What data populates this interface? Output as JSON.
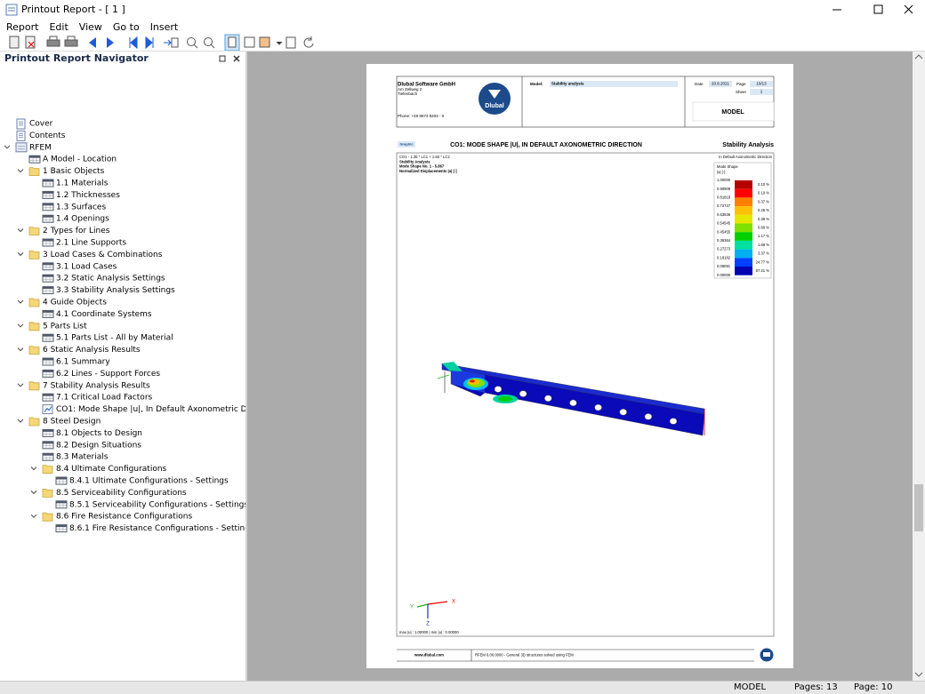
{
  "window": {
    "title": "Printout Report - [ 1 ]"
  },
  "menu": [
    "Report",
    "Edit",
    "View",
    "Go to",
    "Insert"
  ],
  "navigator": {
    "title": "Printout Report Navigator",
    "tree": [
      {
        "label": "Cover"
      },
      {
        "label": "Contents"
      },
      {
        "label": "RFEM",
        "children": [
          {
            "label": "A Model - Location"
          },
          {
            "label": "1 Basic Objects",
            "children": [
              {
                "label": "1.1 Materials"
              },
              {
                "label": "1.2 Thicknesses"
              },
              {
                "label": "1.3 Surfaces"
              },
              {
                "label": "1.4 Openings"
              }
            ]
          },
          {
            "label": "2 Types for Lines",
            "children": [
              {
                "label": "2.1 Line Supports"
              }
            ]
          },
          {
            "label": "3 Load Cases & Combinations",
            "children": [
              {
                "label": "3.1 Load Cases"
              },
              {
                "label": "3.2 Static Analysis Settings"
              },
              {
                "label": "3.3 Stability Analysis Settings"
              }
            ]
          },
          {
            "label": "4 Guide Objects",
            "children": [
              {
                "label": "4.1 Coordinate Systems"
              }
            ]
          },
          {
            "label": "5 Parts List",
            "children": [
              {
                "label": "5.1 Parts List - All by Material"
              }
            ]
          },
          {
            "label": "6 Static Analysis Results",
            "children": [
              {
                "label": "6.1 Summary"
              },
              {
                "label": "6.2 Lines - Support Forces"
              }
            ]
          },
          {
            "label": "7 Stability Analysis Results",
            "children": [
              {
                "label": "7.1 Critical Load Factors"
              },
              {
                "label": "CO1: Mode Shape |u|, In Default Axonometric Direction"
              }
            ]
          },
          {
            "label": "8 Steel Design",
            "children": [
              {
                "label": "8.1 Objects to Design"
              },
              {
                "label": "8.2 Design Situations"
              },
              {
                "label": "8.3 Materials"
              },
              {
                "label": "8.4 Ultimate Configurations",
                "children": [
                  {
                    "label": "8.4.1 Ultimate Configurations - Settings"
                  }
                ]
              },
              {
                "label": "8.5 Serviceability Configurations",
                "children": [
                  {
                    "label": "8.5.1 Serviceability Configurations - Settings"
                  }
                ]
              },
              {
                "label": "8.6 Fire Resistance Configurations",
                "children": [
                  {
                    "label": "8.6.1 Fire Resistance Configurations - Settings"
                  }
                ]
              }
            ]
          }
        ]
      }
    ]
  },
  "page": {
    "company": "Dlubal Software GmbH",
    "street": "Am Zellweg 2",
    "city": "Tiefenbach",
    "phone": "Phone: +49 9673 9203 - 0",
    "logo": "Dlubal",
    "model_label": "Model:",
    "model": "Stability analysis",
    "date_label": "Date",
    "date": "20.8.2021",
    "page_label": "Page",
    "page": "10/13",
    "sheet_label": "Sheet",
    "sheet": "1",
    "section": "MODEL",
    "graphic_badge": "Graphic",
    "graphic_title": "CO1: MODE SHAPE |U|, IN DEFAULT AXONOMETRIC DIRECTION",
    "graphic_right": "Stability Analysis",
    "info": [
      "CO1 - 1.35 * LC1 + 1.50 * LC2",
      "Stability Analysis",
      "Mode Shape No. 1 - 5.867",
      "Normalized Displacements |u| [-]"
    ],
    "direction": "In Default Axonometric Direction",
    "legend": {
      "title": "Mode Shape",
      "unit": "|u| [-]",
      "labels": [
        "1.00000",
        "0.90909",
        "0.81818",
        "0.72727",
        "0.63636",
        "0.54545",
        "0.45455",
        "0.36364",
        "0.27273",
        "0.18182",
        "0.09091",
        "0.00000"
      ],
      "bands": [
        {
          "color": "#b40000",
          "percent": "0.10 %"
        },
        {
          "color": "#ff0000",
          "percent": "0.19 %"
        },
        {
          "color": "#ff8000",
          "percent": "0.37 %"
        },
        {
          "color": "#ffc000",
          "percent": "0.26 %"
        },
        {
          "color": "#e6e600",
          "percent": "0.39 %"
        },
        {
          "color": "#80e000",
          "percent": "0.69 %"
        },
        {
          "color": "#00d000",
          "percent": "1.17 %"
        },
        {
          "color": "#00e0a0",
          "percent": "1.69 %"
        },
        {
          "color": "#00b0f0",
          "percent": "3.37 %"
        },
        {
          "color": "#0040ff",
          "percent": "24.77 %"
        },
        {
          "color": "#0000b0",
          "percent": "67.21 %"
        }
      ]
    },
    "axes": {
      "x": "X",
      "y": "Y",
      "z": "Z"
    },
    "minmax": "max |u| : 1.00000 | min |u| : 0.00000",
    "footer_site": "www.dlubal.com",
    "footer_text": "RFEM 6.00.0000 - General 3D structures solved using FEM"
  },
  "status": {
    "model": "MODEL",
    "pages": "Pages: 13",
    "page": "Page: 10"
  }
}
